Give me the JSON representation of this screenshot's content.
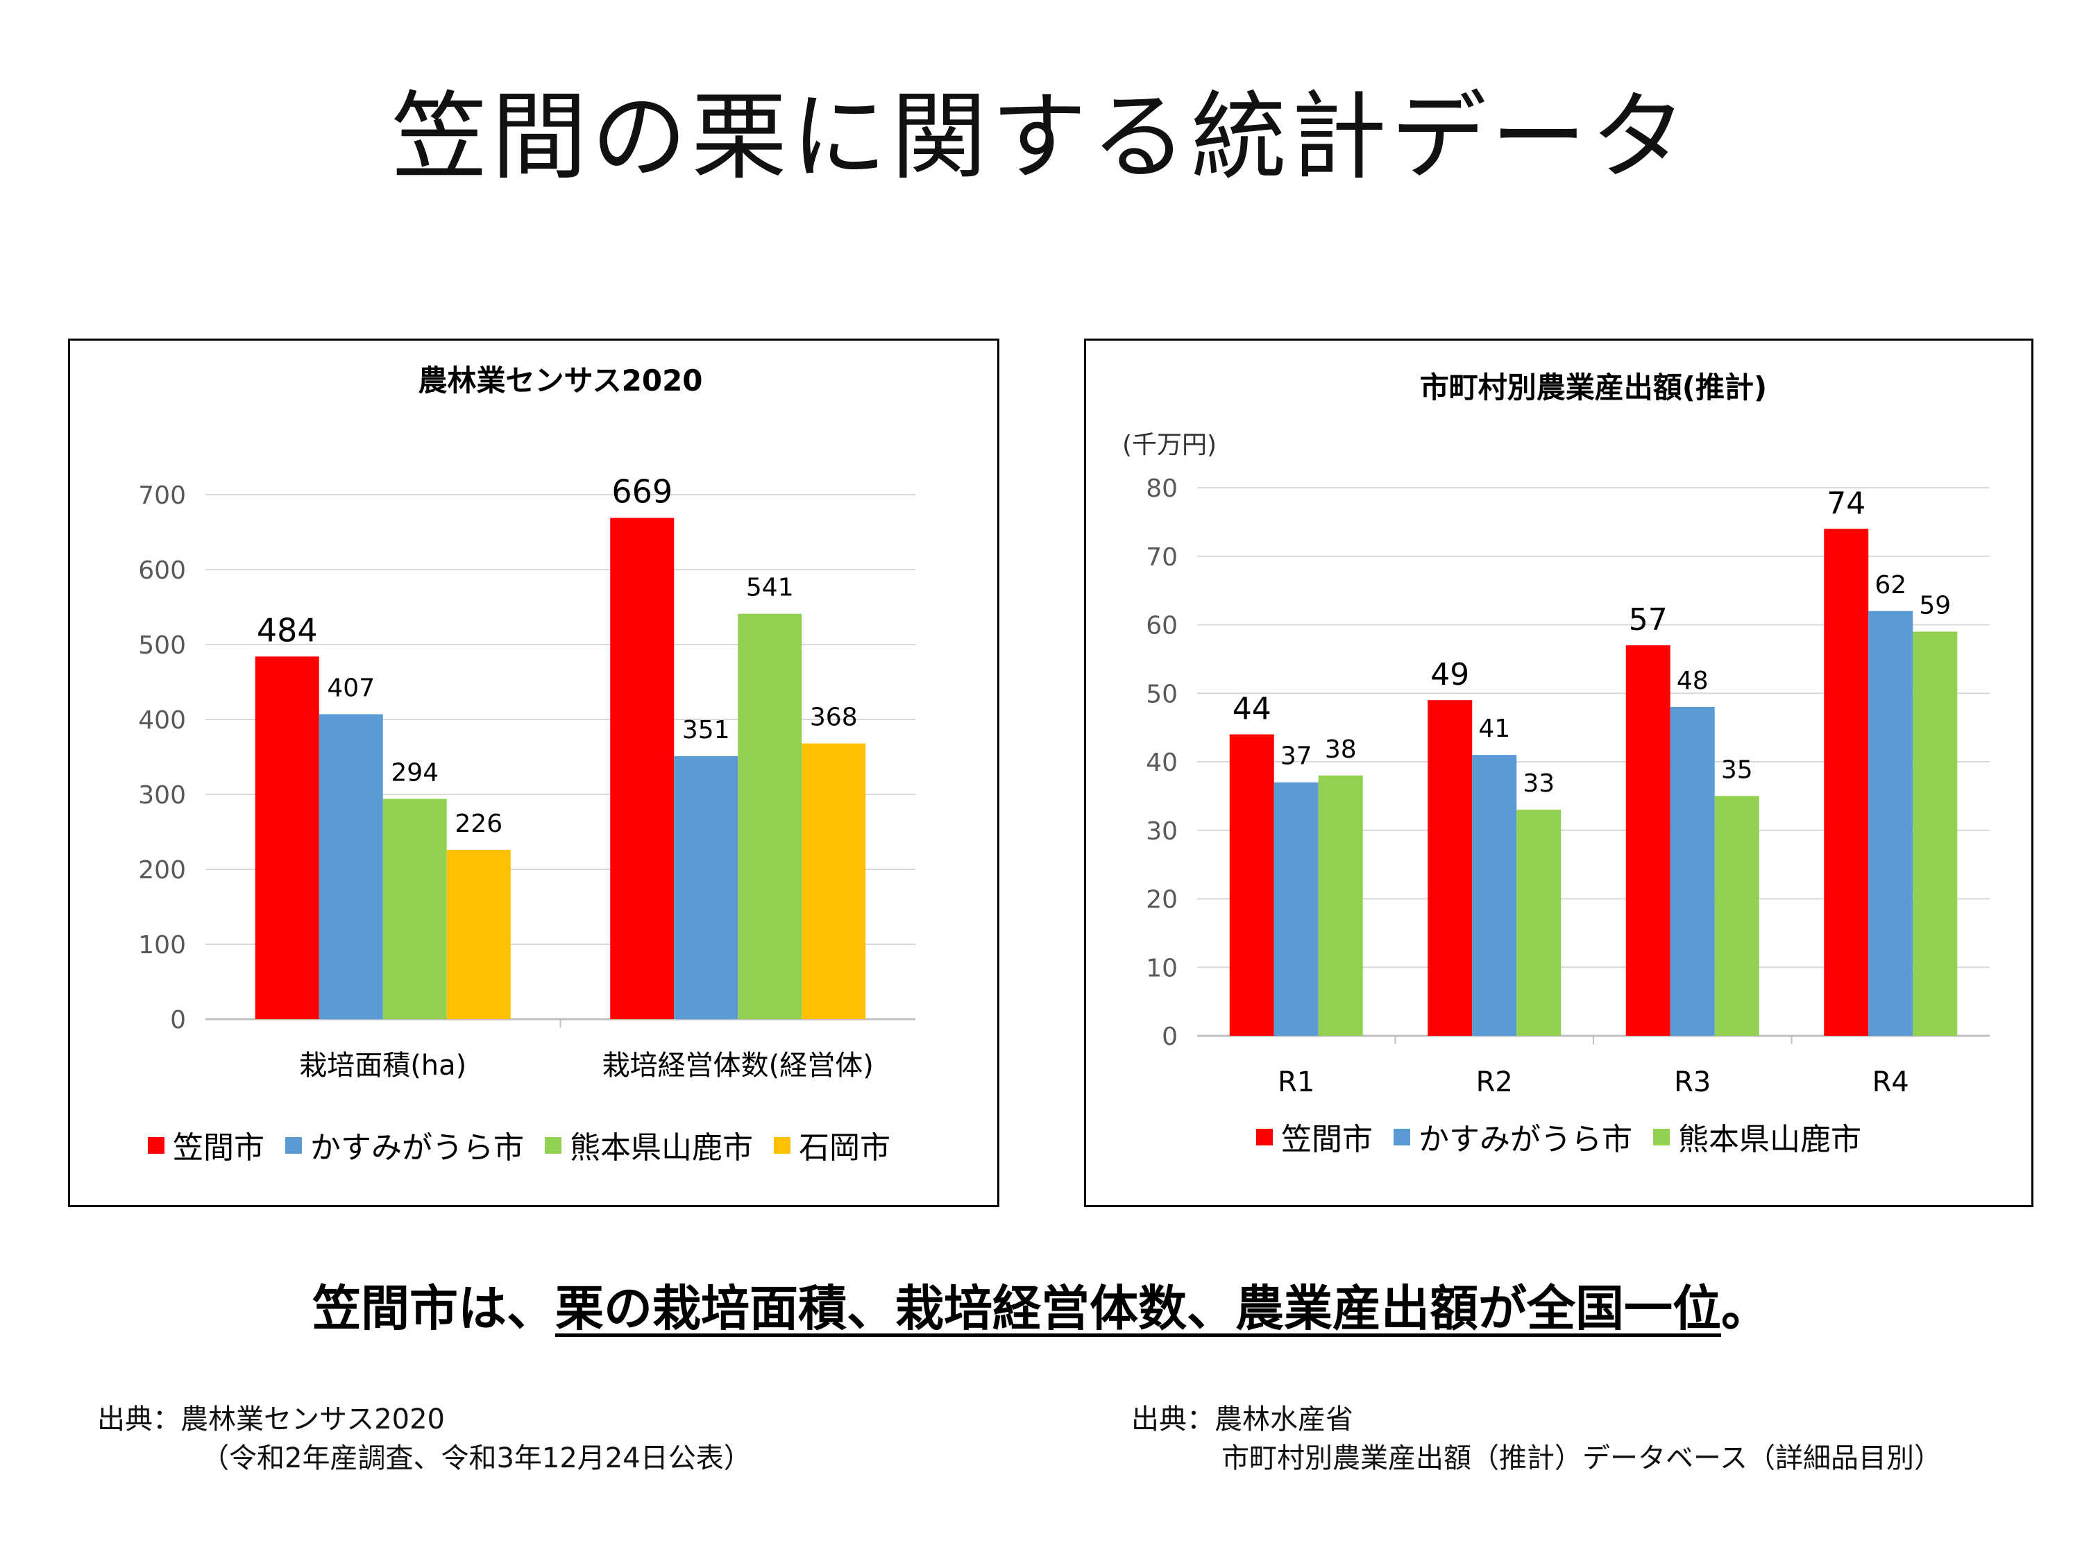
{
  "page": {
    "title": "笠間の栗に関する統計データ",
    "conclusion_prefix": "笠間市は、",
    "conclusion_underlined": "栗の栽培面積、栽培経営体数、農業産出額が全国一位",
    "conclusion_suffix": "。",
    "source_left": {
      "line1": "出典：農林業センサス2020",
      "line2": "（令和2年産調査、令和3年12月24日公表）"
    },
    "source_right": {
      "line1": "出典：農林水産省",
      "line2": "市町村別農業産出額（推計）データベース（詳細品目別）"
    }
  },
  "chart_data": [
    {
      "type": "bar",
      "title": "農林業センサス2020",
      "ylabel": "",
      "ylim": [
        0,
        700
      ],
      "yticks": [
        0,
        100,
        200,
        300,
        400,
        500,
        600,
        700
      ],
      "categories": [
        "栽培面積(ha)",
        "栽培経営体数(経営体)"
      ],
      "series": [
        {
          "name": "笠間市",
          "color": "#FF0000",
          "values": [
            484,
            669
          ]
        },
        {
          "name": "かすみがうら市",
          "color": "#5B9BD5",
          "values": [
            407,
            351
          ]
        },
        {
          "name": "熊本県山鹿市",
          "color": "#92D050",
          "values": [
            294,
            541
          ]
        },
        {
          "name": "石岡市",
          "color": "#FFC000",
          "values": [
            226,
            368
          ]
        }
      ],
      "grid": true,
      "legend": "bottom"
    },
    {
      "type": "bar",
      "title": "市町村別農業産出額(推計)",
      "ylabel": "(千万円)",
      "ylim": [
        0,
        80
      ],
      "yticks": [
        0,
        10,
        20,
        30,
        40,
        50,
        60,
        70,
        80
      ],
      "categories": [
        "R1",
        "R2",
        "R3",
        "R4"
      ],
      "series": [
        {
          "name": "笠間市",
          "color": "#FF0000",
          "values": [
            44,
            49,
            57,
            74
          ]
        },
        {
          "name": "かすみがうら市",
          "color": "#5B9BD5",
          "values": [
            37,
            41,
            48,
            62
          ]
        },
        {
          "name": "熊本県山鹿市",
          "color": "#92D050",
          "values": [
            38,
            33,
            35,
            59
          ]
        }
      ],
      "grid": true,
      "legend": "bottom"
    }
  ]
}
